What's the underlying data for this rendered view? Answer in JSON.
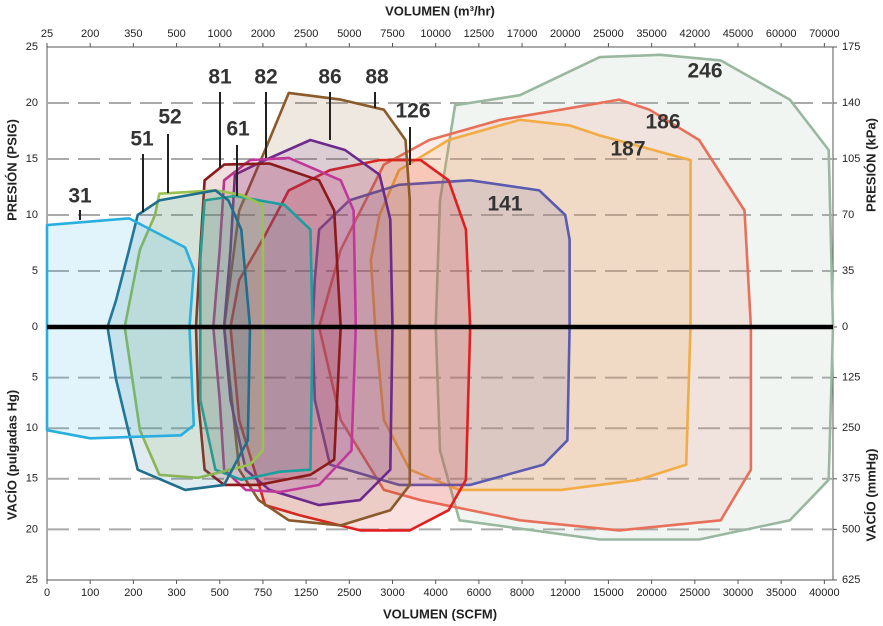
{
  "chart_data": {
    "type": "area",
    "x_label": "VOLUMEN (SCFM)",
    "x2_label": "VOLUMEN (m³/hr)",
    "y_label": "PRESIÓN (PSIG)",
    "y_label_vacuum": "VACÍO (pulgadas Hg)",
    "y2_label": "PRESIÓN (kPa)",
    "y2_label_vacuum": "VACÍO (mmHg)",
    "xlim": [
      0,
      18.2
    ],
    "ylim": [
      -25,
      25
    ],
    "grid": true,
    "xticks": [
      {
        "value": 0,
        "label": "0"
      },
      {
        "value": 1,
        "label": "100"
      },
      {
        "value": 2,
        "label": "200"
      },
      {
        "value": 3,
        "label": "300"
      },
      {
        "value": 4,
        "label": "500"
      },
      {
        "value": 5,
        "label": "750"
      },
      {
        "value": 6,
        "label": "1250"
      },
      {
        "value": 7,
        "label": "2500"
      },
      {
        "value": 8,
        "label": "3000"
      },
      {
        "value": 9,
        "label": "4000"
      },
      {
        "value": 10,
        "label": "6000"
      },
      {
        "value": 11,
        "label": "8000"
      },
      {
        "value": 12,
        "label": "12000"
      },
      {
        "value": 13,
        "label": "15000"
      },
      {
        "value": 14,
        "label": "20000"
      },
      {
        "value": 15,
        "label": "25000"
      },
      {
        "value": 16,
        "label": "30000"
      },
      {
        "value": 17,
        "label": "35000"
      },
      {
        "value": 18,
        "label": "40000"
      }
    ],
    "x2ticks": [
      {
        "value": 0,
        "label": "25"
      },
      {
        "value": 1,
        "label": "200"
      },
      {
        "value": 2,
        "label": "350"
      },
      {
        "value": 3,
        "label": "500"
      },
      {
        "value": 4,
        "label": "1000"
      },
      {
        "value": 5,
        "label": "2000"
      },
      {
        "value": 6,
        "label": "2500"
      },
      {
        "value": 7,
        "label": "5000"
      },
      {
        "value": 8,
        "label": "7500"
      },
      {
        "value": 9,
        "label": "10000"
      },
      {
        "value": 10,
        "label": "12500"
      },
      {
        "value": 11,
        "label": "17000"
      },
      {
        "value": 12,
        "label": "20000"
      },
      {
        "value": 13,
        "label": "25000"
      },
      {
        "value": 14,
        "label": "35000"
      },
      {
        "value": 15,
        "label": "42000"
      },
      {
        "value": 16,
        "label": "45000"
      },
      {
        "value": 17,
        "label": "60000"
      },
      {
        "value": 18,
        "label": "70000"
      }
    ],
    "yticks": [
      25,
      20,
      15,
      10,
      5,
      0,
      {
        "value": -5,
        "label": "5"
      },
      {
        "value": -10,
        "label": "10"
      },
      {
        "value": -15,
        "label": "15"
      },
      {
        "value": -20,
        "label": "20"
      },
      {
        "value": -25,
        "label": "25"
      }
    ],
    "y2ticks": [
      {
        "value": 25,
        "label": "175"
      },
      {
        "value": 20,
        "label": "140"
      },
      {
        "value": 15,
        "label": "105"
      },
      {
        "value": 10,
        "label": "70"
      },
      {
        "value": 5,
        "label": "35"
      },
      0,
      {
        "value": -5,
        "label": "125"
      },
      {
        "value": -10,
        "label": "250"
      },
      {
        "value": -15,
        "label": "375"
      },
      {
        "value": -20,
        "label": "500"
      },
      {
        "value": -25,
        "label": "625"
      }
    ],
    "series": [
      {
        "name": "31",
        "color": "#29aee0",
        "x": [
          0,
          1.9,
          3.2,
          3.4,
          3.3,
          3.4,
          3.1,
          1,
          0
        ],
        "y": [
          9.1,
          9.7,
          7.1,
          5.1,
          0,
          -9.7,
          -10.7,
          -11,
          -10.2
        ]
      },
      {
        "name": "51",
        "color": "#1f6e8c",
        "x": [
          2.1,
          2.6,
          3.9,
          4.2,
          4.5,
          4.7,
          4.65,
          4.1,
          3.2,
          2.1,
          1.6,
          1.4,
          1.6,
          1.9
        ],
        "y": [
          10,
          11.3,
          12.2,
          11.3,
          8.7,
          0,
          -11.2,
          -15.6,
          -16.1,
          -14.1,
          -5.2,
          0,
          2.4,
          6.9
        ]
      },
      {
        "name": "52",
        "color": "#9bc14f",
        "x": [
          2.5,
          2.6,
          3.9,
          4.5,
          5,
          5,
          5,
          4.7,
          3.5,
          2.6,
          2.15,
          1.8,
          2.15
        ],
        "y": [
          10,
          11.9,
          12.2,
          11.8,
          10.9,
          0,
          -12.2,
          -13.6,
          -14.9,
          -14.6,
          -10.2,
          0,
          6.9
        ]
      },
      {
        "name": "61",
        "color": "#1a9e9e",
        "x": [
          3.65,
          4.35,
          5.5,
          6.1,
          6.15,
          6.1,
          5.4,
          4.5,
          3.9,
          3.55,
          3.55,
          3.55
        ],
        "y": [
          11.3,
          11.7,
          10.9,
          8.7,
          0,
          -14.1,
          -14.3,
          -15.1,
          -14.1,
          -7.2,
          0,
          6
        ]
      },
      {
        "name": "81",
        "color": "#8b1a1a",
        "x": [
          3.65,
          4.1,
          5.15,
          6.3,
          6.65,
          6.8,
          6.65,
          6.1,
          4.9,
          4.1,
          3.65,
          3.5,
          3.45,
          3.55
        ],
        "y": [
          13.1,
          14.5,
          14.6,
          13.1,
          10.4,
          0,
          -13.1,
          -14.6,
          -15.6,
          -15.6,
          -14.1,
          -7.2,
          0,
          6.9
        ]
      },
      {
        "name": "82",
        "color": "#c0399a",
        "x": [
          4.1,
          4.7,
          5.6,
          6.8,
          7.1,
          7.15,
          7.05,
          6.3,
          5.4,
          4.6,
          4.1,
          4,
          3.85,
          4
        ],
        "y": [
          13.1,
          14.9,
          15.1,
          13.1,
          10.4,
          0,
          -12.2,
          -15.6,
          -16.3,
          -16.1,
          -14.1,
          -7.2,
          0,
          6.9
        ]
      },
      {
        "name": "86",
        "color": "#6b2a8c",
        "x": [
          4.35,
          5.05,
          6.1,
          6.9,
          7.7,
          7.95,
          8,
          7.95,
          7.25,
          6.3,
          5.15,
          4.6,
          4.25,
          4.1,
          4.25
        ],
        "y": [
          13.6,
          14.9,
          16.7,
          15.8,
          13.6,
          9.6,
          0,
          -14.1,
          -17.1,
          -17.6,
          -16.1,
          -14.1,
          -7.2,
          0,
          6.9
        ]
      },
      {
        "name": "88",
        "color": "#8b5a2b",
        "x": [
          4.45,
          5.05,
          5.6,
          6.8,
          7.8,
          8.3,
          8.4,
          8.4,
          8.4,
          7.95,
          6.8,
          5.6,
          4.9,
          4.45,
          4.1
        ],
        "y": [
          10.4,
          15.8,
          20.9,
          20.3,
          19.4,
          16.7,
          11.3,
          0,
          -15.6,
          -18.1,
          -19.6,
          -19.1,
          -17.1,
          -14.1,
          0
        ]
      },
      {
        "name": "126",
        "color": "#e02020",
        "x": [
          5.05,
          5.6,
          6.55,
          7.7,
          8.65,
          9.3,
          9.7,
          9.8,
          9.7,
          9.3,
          8.4,
          7.25,
          5.85,
          5.05,
          4.45,
          4.25,
          4.45
        ],
        "y": [
          8.2,
          12.2,
          14,
          14.9,
          14.9,
          13.1,
          8.7,
          0,
          -15.1,
          -18.1,
          -20.1,
          -20.1,
          -18.6,
          -17.6,
          -9.2,
          0,
          4.2
        ]
      },
      {
        "name": "141",
        "color": "#5a5ab0",
        "x": [
          6.3,
          7,
          8.15,
          9.8,
          11.4,
          12,
          12.1,
          12.1,
          12.05,
          11.5,
          9.8,
          8.15,
          6.55,
          6.2,
          6.15,
          6.2
        ],
        "y": [
          8.7,
          11.3,
          12.7,
          13.1,
          12.2,
          10,
          7.8,
          0,
          -11.2,
          -13.6,
          -15.6,
          -15.6,
          -13.6,
          -7.2,
          0,
          4.2
        ]
      },
      {
        "name": "186",
        "color": "#e8705a",
        "x": [
          7.8,
          8.85,
          10.5,
          11.9,
          13.25,
          13.95,
          15.1,
          16.15,
          16.3,
          16.3,
          15.6,
          13.25,
          10.95,
          8.65,
          7.8,
          6.8,
          6.3,
          6.8
        ],
        "y": [
          14.5,
          16.7,
          18.5,
          19.4,
          20.3,
          19.4,
          16.7,
          10.4,
          0,
          -14.1,
          -19.1,
          -20.1,
          -19.1,
          -17.1,
          -16.1,
          -9.2,
          0,
          6.9
        ]
      },
      {
        "name": "187",
        "color": "#f5b540",
        "x": [
          7.7,
          8.15,
          9.3,
          10.95,
          12.1,
          12.8,
          14.9,
          14.9,
          14.8,
          13.7,
          11.9,
          9.55,
          8.4,
          7.8,
          7.6,
          7.5
        ],
        "y": [
          10,
          14,
          16.7,
          18.5,
          18,
          17.1,
          14.9,
          0,
          -13.6,
          -15.1,
          -16.1,
          -16.1,
          -14.1,
          -9.2,
          0,
          6
        ]
      },
      {
        "name": "246",
        "color": "#9ab8a0",
        "x": [
          9.45,
          10.95,
          12.8,
          14.2,
          15.6,
          17.2,
          18.1,
          18.2,
          18.1,
          17.2,
          15.1,
          12.8,
          9.55,
          9.1,
          9,
          9.1
        ],
        "y": [
          19.8,
          20.7,
          24.1,
          24.3,
          23.8,
          20.3,
          15.8,
          0,
          -15.1,
          -19.1,
          -21,
          -21,
          -19.1,
          -12.2,
          0,
          11.3
        ]
      }
    ]
  }
}
